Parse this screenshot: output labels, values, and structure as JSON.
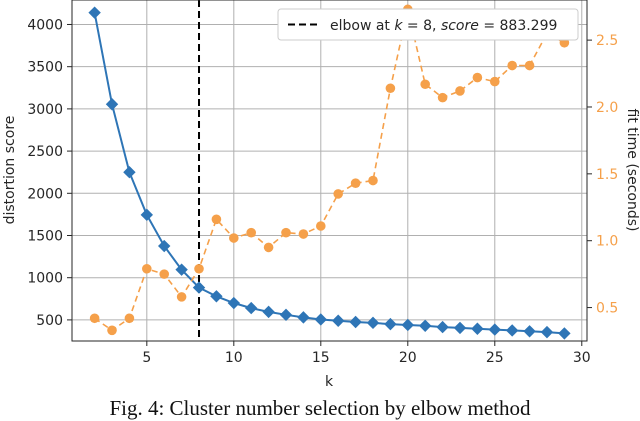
{
  "caption": "Fig. 4: Cluster number selection by elbow method",
  "legend_label_prefix": "elbow at ",
  "legend_k": "k",
  "legend_eq": " = 8, ",
  "legend_score": "score",
  "legend_value": " = 883.299",
  "chart_data": {
    "type": "line",
    "x": [
      2,
      3,
      4,
      5,
      6,
      7,
      8,
      9,
      10,
      11,
      12,
      13,
      14,
      15,
      16,
      17,
      18,
      19,
      20,
      21,
      22,
      23,
      24,
      25,
      26,
      27,
      28,
      29
    ],
    "xlabel": "k",
    "ylabel": "distortion score",
    "y2label": "fit time (seconds)",
    "xlim": [
      0.7,
      30.3
    ],
    "ylim": [
      250,
      4290
    ],
    "y2lim": [
      0.25,
      2.8
    ],
    "xticks": [
      5,
      10,
      15,
      20,
      25,
      30
    ],
    "yticks": [
      500,
      1000,
      1500,
      2000,
      2500,
      3000,
      3500,
      4000
    ],
    "y2ticks": [
      0.5,
      1.0,
      1.5,
      2.0,
      2.5
    ],
    "y2tick_labels": [
      "0.5",
      "1.0",
      "1.5",
      "2.0",
      "2.5"
    ],
    "series": [
      {
        "axis": "left",
        "color": "#2e75b6",
        "values": [
          4140,
          3055,
          2250,
          1745,
          1375,
          1095,
          883,
          780,
          700,
          640,
          595,
          560,
          530,
          505,
          490,
          475,
          465,
          450,
          440,
          430,
          415,
          405,
          395,
          385,
          375,
          365,
          355,
          340
        ]
      },
      {
        "axis": "right",
        "color": "#f5a04a",
        "values": [
          0.42,
          0.33,
          0.42,
          0.79,
          0.75,
          0.58,
          0.79,
          1.16,
          1.02,
          1.06,
          0.95,
          1.06,
          1.05,
          1.11,
          1.35,
          1.43,
          1.45,
          2.14,
          2.73,
          2.17,
          2.07,
          2.12,
          2.22,
          2.19,
          2.31,
          2.31,
          2.55,
          2.48
        ]
      }
    ],
    "elbow_k": 8,
    "elbow_score": 883.299,
    "grid": true,
    "legend_position": "top-right"
  }
}
